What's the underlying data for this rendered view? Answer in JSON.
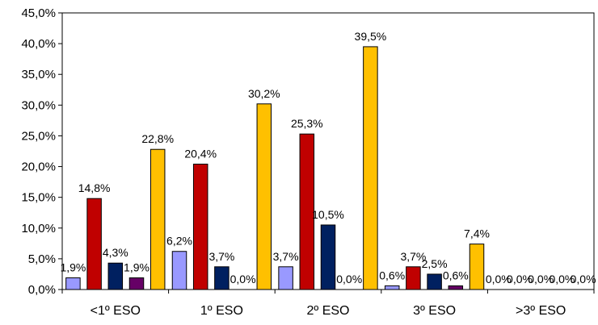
{
  "chart_data": {
    "type": "bar",
    "categories": [
      "<1º ESO",
      "1º ESO",
      "2º ESO",
      "3º ESO",
      ">3º ESO"
    ],
    "series": [
      {
        "color": "#9999ff",
        "values": [
          1.9,
          6.2,
          3.7,
          0.6,
          0.0
        ],
        "labels": [
          "1,9%",
          "6,2%",
          "3,7%",
          "0,6%",
          "0,0%"
        ]
      },
      {
        "color": "#c00000",
        "values": [
          14.8,
          20.4,
          25.3,
          3.7,
          0.0
        ],
        "labels": [
          "14,8%",
          "20,4%",
          "25,3%",
          "3,7%",
          "0,0%"
        ]
      },
      {
        "color": "#002060",
        "values": [
          4.3,
          3.7,
          10.5,
          2.5,
          0.0
        ],
        "labels": [
          "4,3%",
          "3,7%",
          "10,5%",
          "2,5%",
          "0,0%"
        ]
      },
      {
        "color": "#660066",
        "values": [
          1.9,
          0.0,
          0.0,
          0.6,
          0.0
        ],
        "labels": [
          "1,9%",
          "0,0%",
          "0,0%",
          "0,6%",
          "0,0%"
        ]
      },
      {
        "color": "#ffc000",
        "values": [
          22.8,
          30.2,
          39.5,
          7.4,
          0.0
        ],
        "labels": [
          "22,8%",
          "30,2%",
          "39,5%",
          "7,4%",
          "0,0%"
        ]
      }
    ],
    "ylim": [
      0,
      45
    ],
    "yticks": [
      "0,0%",
      "5,0%",
      "10,0%",
      "15,0%",
      "20,0%",
      "25,0%",
      "30,0%",
      "35,0%",
      "40,0%",
      "45,0%"
    ],
    "ytick_values": [
      0,
      5,
      10,
      15,
      20,
      25,
      30,
      35,
      40,
      45
    ],
    "grid": false,
    "legend": "none"
  }
}
